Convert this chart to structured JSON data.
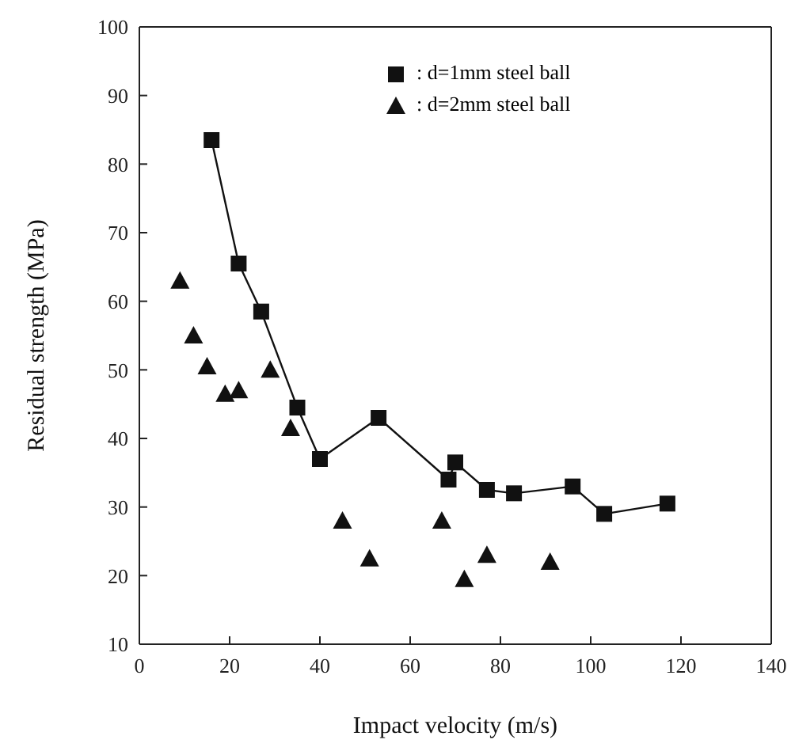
{
  "chart_data": {
    "type": "scatter",
    "xlabel": "Impact velocity (m/s)",
    "ylabel": "Residual strength (MPa)",
    "xlim": [
      0,
      140
    ],
    "xticks": [
      0,
      20,
      40,
      60,
      80,
      100,
      120,
      140
    ],
    "ylim": [
      10,
      100
    ],
    "yticks": [
      10,
      20,
      30,
      40,
      50,
      60,
      70,
      80,
      90,
      100
    ],
    "grid": false,
    "legend": "top right",
    "series": [
      {
        "name": ": d=1mm steel ball",
        "color": "#111111",
        "type": "line",
        "marker": "square",
        "line_style": "solid",
        "x": [
          16,
          22,
          27,
          35,
          40,
          53,
          68.5,
          70,
          77,
          83,
          96,
          103,
          117
        ],
        "values": [
          83.5,
          65.5,
          58.5,
          44.5,
          37,
          43,
          34,
          36.5,
          32.5,
          32,
          33,
          29,
          30.5
        ]
      },
      {
        "name": ": d=2mm steel ball",
        "color": "#111111",
        "marker": "triangle",
        "x": [
          9,
          12,
          15,
          19,
          22,
          29,
          33.5,
          45,
          51,
          67,
          72,
          77,
          91
        ],
        "values": [
          63,
          55,
          50.5,
          46.5,
          47,
          50,
          41.5,
          28,
          22.5,
          28,
          19.5,
          23,
          22
        ]
      }
    ]
  }
}
